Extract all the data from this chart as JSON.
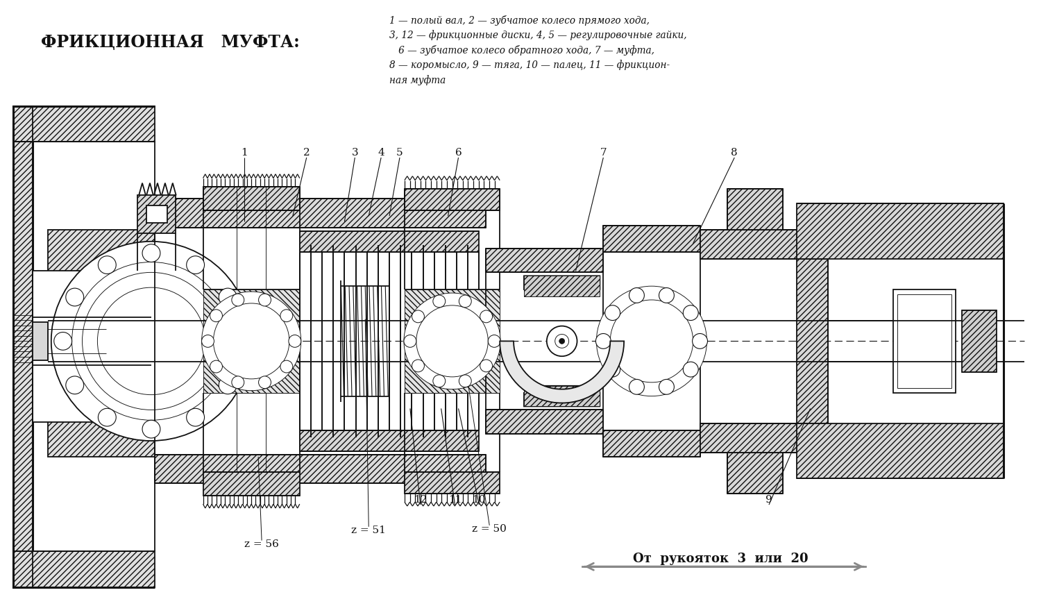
{
  "title": "ФРИКЦИОННАЯ   МУФТА:",
  "legend_lines": [
    "1 — полый вал, 2 — зубчатое колесо прямого хода,",
    "3, 12 — фрикционные диски, 4, 5 — регулировочные гайки,",
    "   6 — зубчатое колесо обратного хода, 7 — муфта,",
    "8 — коромысло, 9 — тяга, 10 — палец, 11 — фрикцион-",
    "ная муфта"
  ],
  "bg_color": "#ffffff",
  "dc": "#111111",
  "lw_main": 1.3,
  "lw_thick": 2.2,
  "lw_thin": 0.65
}
